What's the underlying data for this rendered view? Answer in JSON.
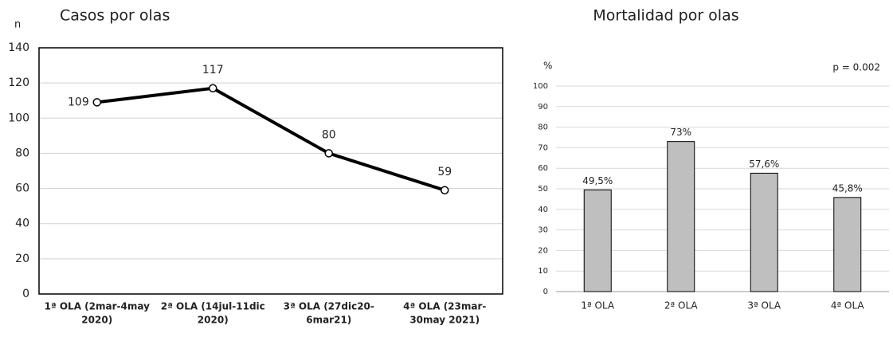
{
  "chart_data": [
    {
      "type": "line",
      "title": "Casos por olas",
      "y_label": "n",
      "categories": [
        [
          "1ª OLA (2mar-4may",
          "2020)"
        ],
        [
          "2ª OLA (14jul-11dic",
          "2020)"
        ],
        [
          "3ª OLA (27dic20-",
          "6mar21)"
        ],
        [
          "4ª OLA (23mar-",
          "30may 2021)"
        ]
      ],
      "values": [
        109,
        117,
        80,
        59
      ],
      "color": "#000000",
      "ylim": [
        0,
        140
      ],
      "yticks": [
        0,
        20,
        40,
        60,
        80,
        100,
        120,
        140
      ],
      "grid": true
    },
    {
      "type": "bar",
      "title": "Mortalidad por olas",
      "y_label": "%",
      "annotation": "p = 0.002",
      "categories": [
        "1ª OLA",
        "2ª OLA",
        "3ª OLA",
        "4ª OLA"
      ],
      "values": [
        49.5,
        73,
        57.6,
        45.8
      ],
      "value_labels": [
        "49,5%",
        "73%",
        "57,6%",
        "45,8%"
      ],
      "color": "#bfbfbf",
      "ylim": [
        0,
        100
      ],
      "yticks": [
        0,
        10,
        20,
        30,
        40,
        50,
        60,
        70,
        80,
        90,
        100
      ],
      "grid": true
    }
  ]
}
